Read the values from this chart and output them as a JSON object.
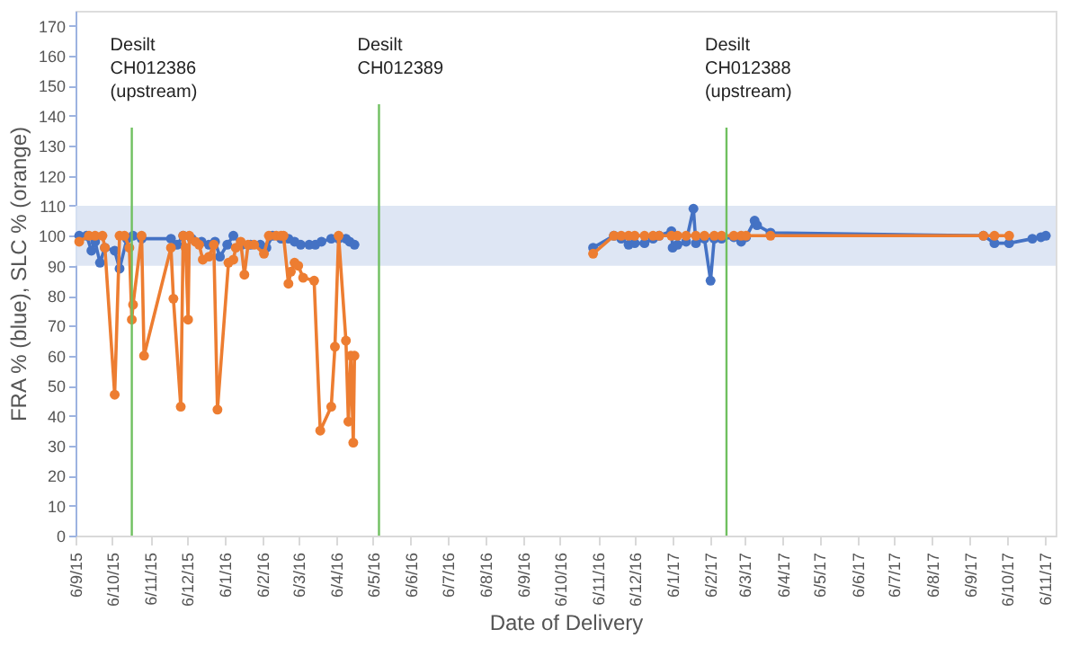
{
  "chart_data": {
    "type": "line",
    "xlabel": "Date of Delivery",
    "ylabel": "FRA % (blue), SLC % (orange)",
    "xlim": [
      "2015-09-06",
      "2017-11-15"
    ],
    "ylim": [
      0,
      175
    ],
    "yticks": [
      0,
      10,
      20,
      30,
      40,
      50,
      60,
      70,
      80,
      90,
      100,
      110,
      120,
      130,
      140,
      150,
      160,
      170
    ],
    "xticks": [
      {
        "value": "2015-09-06",
        "label": "6/9/15"
      },
      {
        "value": "2015-10-06",
        "label": "6/10/15"
      },
      {
        "value": "2015-11-06",
        "label": "6/11/15"
      },
      {
        "value": "2015-12-06",
        "label": "6/12/15"
      },
      {
        "value": "2016-01-06",
        "label": "6/1/16"
      },
      {
        "value": "2016-02-06",
        "label": "6/2/16"
      },
      {
        "value": "2016-03-06",
        "label": "6/3/16"
      },
      {
        "value": "2016-04-06",
        "label": "6/4/16"
      },
      {
        "value": "2016-05-06",
        "label": "6/5/16"
      },
      {
        "value": "2016-06-06",
        "label": "6/6/16"
      },
      {
        "value": "2016-07-06",
        "label": "6/7/16"
      },
      {
        "value": "2016-08-06",
        "label": "6/8/16"
      },
      {
        "value": "2016-09-06",
        "label": "6/9/16"
      },
      {
        "value": "2016-10-06",
        "label": "6/10/16"
      },
      {
        "value": "2016-11-06",
        "label": "6/11/16"
      },
      {
        "value": "2016-12-06",
        "label": "6/12/16"
      },
      {
        "value": "2017-01-06",
        "label": "6/1/17"
      },
      {
        "value": "2017-02-06",
        "label": "6/2/17"
      },
      {
        "value": "2017-03-06",
        "label": "6/3/17"
      },
      {
        "value": "2017-04-06",
        "label": "6/4/17"
      },
      {
        "value": "2017-05-06",
        "label": "6/5/17"
      },
      {
        "value": "2017-06-06",
        "label": "6/6/17"
      },
      {
        "value": "2017-07-06",
        "label": "6/7/17"
      },
      {
        "value": "2017-08-06",
        "label": "6/8/17"
      },
      {
        "value": "2017-09-06",
        "label": "6/9/17"
      },
      {
        "value": "2017-10-06",
        "label": "6/10/17"
      },
      {
        "value": "2017-11-06",
        "label": "6/11/17"
      }
    ],
    "grid": false,
    "legend": false,
    "marker": "circle",
    "line_style": "solid",
    "bands": [
      {
        "axis": "y",
        "from": 90,
        "to": 110,
        "color": "#dae3f3"
      }
    ],
    "ref_lines": [
      {
        "axis": "x",
        "value": "2015-10-22",
        "label": "Desilt\nCH012386\n(upstream)",
        "color": "#70c060"
      },
      {
        "axis": "x",
        "value": "2016-05-11",
        "label": "Desilt\nCH012389",
        "color": "#70c060"
      },
      {
        "axis": "x",
        "value": "2017-02-19",
        "label": "Desilt\nCH012388\n(upstream)",
        "color": "#70c060"
      }
    ],
    "series": [
      {
        "color": "#4472c4",
        "x": [
          "2015-09-09",
          "2015-09-15",
          "2015-09-19",
          "2015-09-22",
          "2015-09-26",
          "2015-09-30",
          "2015-10-08",
          "2015-10-12",
          "2015-10-18",
          "2015-10-23",
          "2015-10-30",
          "2015-11-23",
          "2015-11-28",
          "2015-12-03",
          "2015-12-10",
          "2015-12-18",
          "2015-12-24",
          "2015-12-29",
          "2016-01-02",
          "2016-01-08",
          "2016-01-13",
          "2016-01-20",
          "2016-01-27",
          "2016-02-04",
          "2016-02-09",
          "2016-02-14",
          "2016-02-21",
          "2016-02-27",
          "2016-03-03",
          "2016-03-08",
          "2016-03-15",
          "2016-03-20",
          "2016-03-25",
          "2016-04-02",
          "2016-04-08",
          "2016-04-14",
          "2016-04-17",
          "2016-04-21",
          "2016-08-01",
          "2016-11-02",
          "2016-11-19",
          "2016-11-25",
          "2016-12-01",
          "2016-12-06",
          "2016-12-14",
          "2016-12-21",
          "2016-12-26",
          "2017-01-05",
          "2017-01-06",
          "2017-01-10",
          "2017-01-17",
          "2017-01-23",
          "2017-01-25",
          "2017-02-01",
          "2017-02-06",
          "2017-02-09",
          "2017-02-15",
          "2017-02-25",
          "2017-03-03",
          "2017-03-07",
          "2017-03-14",
          "2017-03-16",
          "2017-03-27",
          "2017-09-17",
          "2017-09-26",
          "2017-10-08",
          "2017-10-27",
          "2017-11-03",
          "2017-11-07"
        ],
        "values": [
          100,
          100,
          95,
          98,
          91,
          96,
          95,
          89,
          99,
          100,
          99,
          99,
          97,
          100,
          99,
          98,
          97,
          98,
          93,
          97,
          100,
          97,
          97,
          97,
          96,
          100,
          99,
          99,
          98,
          97,
          97,
          97,
          98,
          99,
          99,
          99,
          98,
          97,
          null,
          96,
          100,
          99,
          97,
          97.5,
          97.5,
          99,
          100,
          101.5,
          96,
          97,
          98,
          109,
          97.5,
          99,
          85,
          99,
          99,
          99.5,
          98,
          99.5,
          105,
          103.5,
          101,
          100,
          97.5,
          97.5,
          99,
          99.5,
          100
        ]
      },
      {
        "color": "#ed7d31",
        "x": [
          "2015-09-09",
          "2015-09-17",
          "2015-09-22",
          "2015-09-28",
          "2015-09-30",
          "2015-10-08",
          "2015-10-12",
          "2015-10-16",
          "2015-10-20",
          "2015-10-22",
          "2015-10-23",
          "2015-10-30",
          "2015-11-01",
          "2015-11-23",
          "2015-11-25",
          "2015-12-01",
          "2015-12-03",
          "2015-12-05",
          "2015-12-07",
          "2015-12-08",
          "2015-12-13",
          "2015-12-16",
          "2015-12-19",
          "2015-12-24",
          "2015-12-28",
          "2015-12-31",
          "2016-01-09",
          "2016-01-13",
          "2016-01-15",
          "2016-01-19",
          "2016-01-22",
          "2016-01-25",
          "2016-01-30",
          "2016-02-07",
          "2016-02-11",
          "2016-02-17",
          "2016-02-21",
          "2016-02-23",
          "2016-02-27",
          "2016-02-29",
          "2016-03-03",
          "2016-03-06",
          "2016-03-10",
          "2016-03-19",
          "2016-03-24",
          "2016-04-02",
          "2016-04-05",
          "2016-04-08",
          "2016-04-14",
          "2016-04-16",
          "2016-04-18",
          "2016-04-20",
          "2016-04-21",
          "2016-08-01",
          "2016-11-02",
          "2016-11-19",
          "2016-11-25",
          "2016-12-01",
          "2016-12-06",
          "2016-12-14",
          "2016-12-21",
          "2016-12-26",
          "2017-01-05",
          "2017-01-10",
          "2017-01-17",
          "2017-01-25",
          "2017-02-01",
          "2017-02-09",
          "2017-02-15",
          "2017-02-25",
          "2017-03-03",
          "2017-03-07",
          "2017-03-27",
          "2017-09-17",
          "2017-09-26",
          "2017-10-08"
        ],
        "values": [
          98,
          100,
          100,
          100,
          96,
          47,
          100,
          100,
          96,
          72,
          77,
          100,
          60,
          96,
          79,
          43,
          100,
          96,
          72,
          100,
          98,
          97,
          92,
          93,
          97,
          42,
          91,
          92,
          96,
          98,
          87,
          97,
          97,
          94,
          100,
          100,
          100,
          100,
          84,
          88,
          91,
          90,
          86,
          85,
          35,
          43,
          63,
          100,
          65,
          38,
          60,
          31,
          60,
          null,
          94,
          100,
          100,
          100,
          100,
          100,
          100,
          100,
          100,
          100,
          100,
          100,
          100,
          100,
          100,
          100,
          100,
          100,
          100,
          100,
          100,
          100
        ]
      }
    ]
  }
}
